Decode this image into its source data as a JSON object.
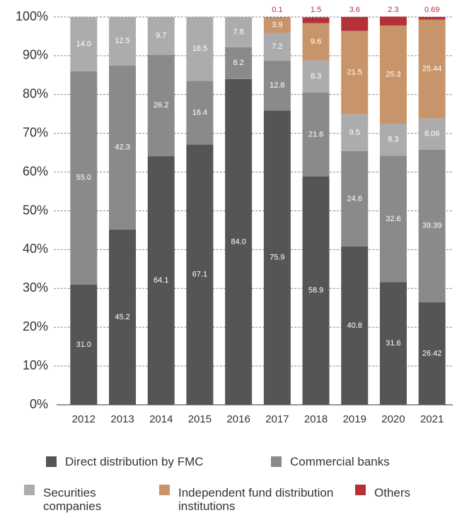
{
  "chart_data": {
    "type": "stacked_bar",
    "categories": [
      "2012",
      "2013",
      "2014",
      "2015",
      "2016",
      "2017",
      "2018",
      "2019",
      "2020",
      "2021"
    ],
    "series": [
      {
        "name": "Direct distribution by FMC",
        "color": "#555556",
        "values": [
          31.0,
          45.2,
          64.1,
          67.1,
          84.0,
          75.9,
          58.9,
          40.8,
          31.6,
          26.42
        ],
        "value_labels": [
          "31.0",
          "45.2",
          "64.1",
          "67.1",
          "84.0",
          "75.9",
          "58.9",
          "40.8",
          "31.6",
          "26.42"
        ]
      },
      {
        "name": "Commercial banks",
        "color": "#8a8a8c",
        "values": [
          55.0,
          42.3,
          26.2,
          16.4,
          8.2,
          12.8,
          21.6,
          24.6,
          32.6,
          39.39
        ],
        "value_labels": [
          "55.0",
          "42.3",
          "26.2",
          "16.4",
          "8.2",
          "12.8",
          "21.6",
          "24.6",
          "32.6",
          "39.39"
        ]
      },
      {
        "name": "Securities companies",
        "color": "#acacae",
        "values": [
          14.0,
          12.5,
          9.7,
          16.5,
          7.8,
          7.2,
          8.3,
          9.5,
          8.3,
          8.06
        ],
        "value_labels": [
          "14.0",
          "12.5",
          "9.7",
          "16.5",
          "7.8",
          "7.2",
          "8.3",
          "9.5",
          "8.3",
          "8.06"
        ]
      },
      {
        "name": "Independent fund distribution institutions",
        "color": "#c8956a",
        "values": [
          null,
          null,
          null,
          null,
          null,
          3.9,
          9.6,
          21.5,
          25.3,
          25.44
        ],
        "value_labels": [
          null,
          null,
          null,
          null,
          null,
          "3.9",
          "9.6",
          "21.5",
          "25.3",
          "25.44"
        ]
      },
      {
        "name": "Others",
        "color": "#b5313a",
        "values": [
          null,
          null,
          null,
          null,
          null,
          0.1,
          1.5,
          3.6,
          2.3,
          0.69
        ],
        "value_labels": [
          null,
          null,
          null,
          null,
          null,
          "0.1",
          "1.5",
          "3.6",
          "2.3",
          "0.69"
        ]
      }
    ],
    "ylim": [
      0,
      100
    ],
    "yticks": [
      {
        "value": 0,
        "label": "0%"
      },
      {
        "value": 10,
        "label": "10%"
      },
      {
        "value": 20,
        "label": "20%"
      },
      {
        "value": 30,
        "label": "30%"
      },
      {
        "value": 40,
        "label": "40%"
      },
      {
        "value": 50,
        "label": "50%"
      },
      {
        "value": 60,
        "label": "60%"
      },
      {
        "value": 70,
        "label": "70%"
      },
      {
        "value": 80,
        "label": "80%"
      },
      {
        "value": 90,
        "label": "90%"
      },
      {
        "value": 100,
        "label": "100%"
      }
    ],
    "grid": true
  }
}
